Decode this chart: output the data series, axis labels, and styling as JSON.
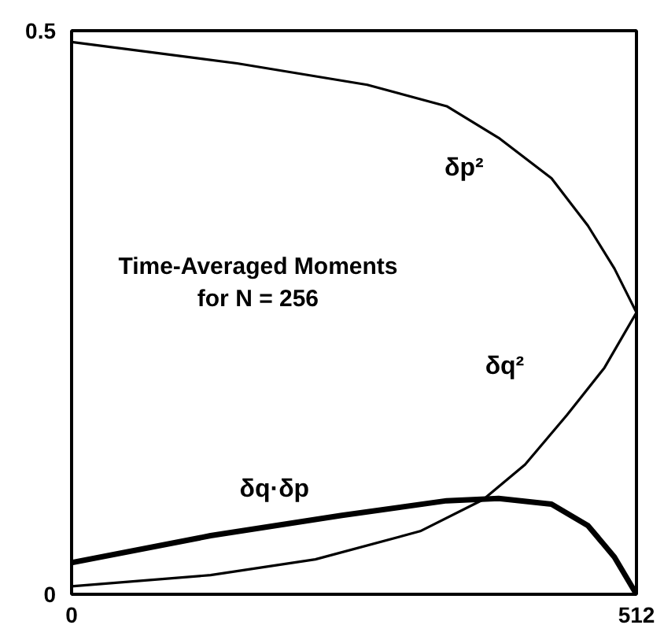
{
  "chart_data": {
    "type": "line",
    "x": [
      0,
      150,
      268,
      340,
      387,
      435,
      468,
      492,
      512
    ],
    "series": [
      {
        "name": "δp²",
        "color": "#000000",
        "values": [
          0.49,
          0.471,
          0.452,
          0.433,
          0.405,
          0.369,
          0.327,
          0.289,
          0.25
        ]
      },
      {
        "name": "δq²",
        "color": "#000000",
        "x": [
          0,
          126,
          221,
          316,
          373,
          411,
          449,
          483,
          512
        ],
        "values": [
          0.007,
          0.017,
          0.031,
          0.056,
          0.084,
          0.115,
          0.159,
          0.201,
          0.25
        ]
      },
      {
        "name": "δq·δp",
        "color": "#000000",
        "x": [
          0,
          126,
          245,
          340,
          387,
          435,
          468,
          492,
          512
        ],
        "values": [
          0.028,
          0.052,
          0.07,
          0.083,
          0.085,
          0.08,
          0.061,
          0.033,
          0.0
        ]
      }
    ],
    "annotations": [
      "Time-Averaged Moments\nfor N = 256"
    ],
    "xlim": [
      0,
      512
    ],
    "ylim": [
      0,
      0.5
    ],
    "xticks": [
      0,
      512
    ],
    "yticks": [
      0,
      0.5
    ],
    "marker": "none",
    "line_style": "solid"
  }
}
